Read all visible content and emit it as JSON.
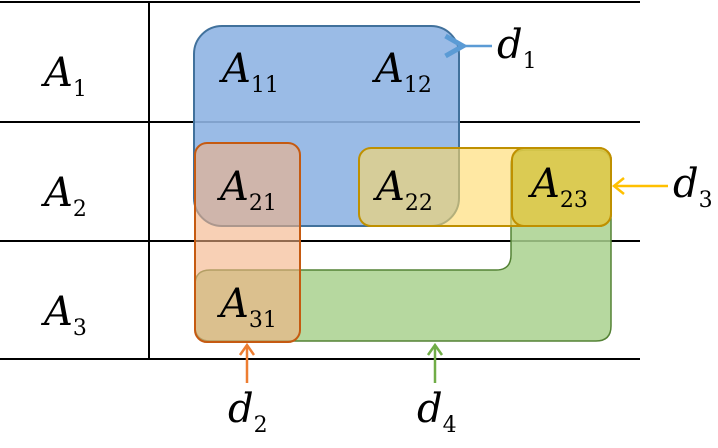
{
  "rows": [
    {
      "label": "A",
      "sub": "1"
    },
    {
      "label": "A",
      "sub": "2"
    },
    {
      "label": "A",
      "sub": "3"
    }
  ],
  "cells": [
    {
      "label": "A",
      "sub": "11"
    },
    {
      "label": "A",
      "sub": "12"
    },
    {
      "label": "A",
      "sub": "21"
    },
    {
      "label": "A",
      "sub": "22"
    },
    {
      "label": "A",
      "sub": "23"
    },
    {
      "label": "A",
      "sub": "31"
    }
  ],
  "groups": [
    {
      "label": "d",
      "sub": "1",
      "color": "#5B9BD5"
    },
    {
      "label": "d",
      "sub": "2",
      "color": "#ED7D31"
    },
    {
      "label": "d",
      "sub": "3",
      "color": "#FFC000"
    },
    {
      "label": "d",
      "sub": "4",
      "color": "#70AD47"
    }
  ]
}
